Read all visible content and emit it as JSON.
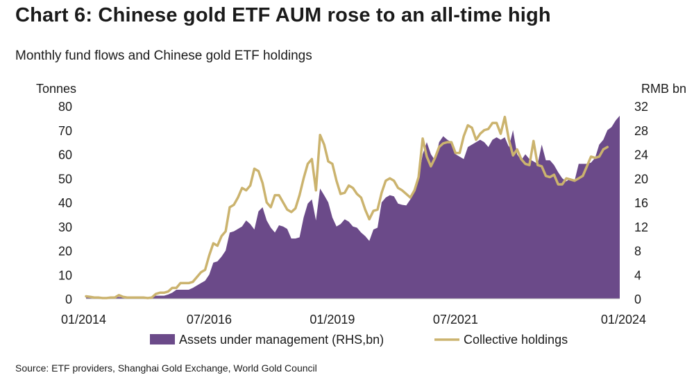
{
  "title": "Chart 6: Chinese gold ETF AUM rose to an all-time high",
  "subtitle": "Monthly fund flows and Chinese gold ETF holdings",
  "source": "Source: ETF providers, Shanghai Gold Exchange, World Gold Council",
  "colors": {
    "aum": "#6b4a89",
    "holdings": "#cbb36e"
  },
  "chart_data": {
    "type": "area+line",
    "title": "Chart 6: Chinese gold ETF AUM rose to an all-time high",
    "left_axis": {
      "label": "Tonnes",
      "min": 0,
      "max": 80,
      "ticks": [
        "0",
        "10",
        "20",
        "30",
        "40",
        "50",
        "60",
        "70",
        "80"
      ]
    },
    "right_axis": {
      "label": "RMB bn",
      "min": 0,
      "max": 32,
      "ticks": [
        "0",
        "4",
        "8",
        "12",
        "16",
        "20",
        "24",
        "28",
        "32"
      ]
    },
    "x_ticks": [
      "01/2014",
      "07/2016",
      "01/2019",
      "07/2021",
      "01/2024"
    ],
    "x_tick_index": [
      0,
      30,
      60,
      90,
      120
    ],
    "legend": {
      "aum": "Assets under management (RHS,bn)",
      "holdings": "Collective holdings"
    },
    "series": [
      {
        "name": "Assets under management (RHS,bn)",
        "type": "area",
        "axis": "right",
        "start": "01/2014",
        "values": [
          0.3,
          0.2,
          0.2,
          0.2,
          0.2,
          0.2,
          0.2,
          0.2,
          0.3,
          0.2,
          0.2,
          0.2,
          0.2,
          0.2,
          0.2,
          0.2,
          0.2,
          0.5,
          0.5,
          0.5,
          0.7,
          1.0,
          1.5,
          1.5,
          1.5,
          1.5,
          1.8,
          2.2,
          2.6,
          3.0,
          4.0,
          6.0,
          6.2,
          7.0,
          8.0,
          11.0,
          11.2,
          11.6,
          12.0,
          13.0,
          12.4,
          11.5,
          14.5,
          15.2,
          13.0,
          11.8,
          11.0,
          12.2,
          12.0,
          11.6,
          10.0,
          10.0,
          10.2,
          13.5,
          15.8,
          16.5,
          13.0,
          18.3,
          17.2,
          16.0,
          13.5,
          12.0,
          12.4,
          13.2,
          12.8,
          12.0,
          11.8,
          11.0,
          10.4,
          9.6,
          11.5,
          11.8,
          16.0,
          16.8,
          17.2,
          17.0,
          15.8,
          15.6,
          15.5,
          16.5,
          18.0,
          20.0,
          24.0,
          26.0,
          24.0,
          23.0,
          26.0,
          27.0,
          26.4,
          26.0,
          24.0,
          23.6,
          23.2,
          25.2,
          25.6,
          26.0,
          26.4,
          26.0,
          25.2,
          26.4,
          26.8,
          26.4,
          26.8,
          25.2,
          28.0,
          24.0,
          23.0,
          24.0,
          23.2,
          22.8,
          22.4,
          25.6,
          23.0,
          23.0,
          22.2,
          21.0,
          20.0,
          19.5,
          20.0,
          19.6,
          22.4,
          22.4,
          22.4,
          22.6,
          23.4,
          25.6,
          26.4,
          28.0,
          28.5,
          29.6,
          30.4
        ]
      },
      {
        "name": "Collective holdings",
        "type": "line",
        "axis": "left",
        "start": "01/2014",
        "values": [
          1,
          0.8,
          0.5,
          0.5,
          0.3,
          0.3,
          0.5,
          0.5,
          1.5,
          0.8,
          0.5,
          0.5,
          0.5,
          0.5,
          0.5,
          0.3,
          0.5,
          2,
          2.5,
          2.5,
          3,
          4.5,
          4.5,
          6.5,
          6.5,
          6.5,
          7,
          9,
          11,
          12,
          18,
          23,
          22,
          26,
          28,
          38,
          39,
          42,
          46,
          45,
          47,
          54,
          53,
          48,
          40,
          38,
          43,
          43,
          40,
          37,
          36,
          37.5,
          43,
          50,
          56,
          58,
          45,
          68,
          64,
          57,
          56,
          49,
          43.5,
          44,
          47,
          46,
          43.5,
          42,
          37,
          33,
          36.5,
          37,
          44,
          49,
          50,
          49,
          46,
          45,
          43.5,
          42,
          45,
          50.5,
          66.5,
          59,
          55,
          58.5,
          63,
          64.5,
          65,
          65,
          60.5,
          60.5,
          67.5,
          72,
          71,
          66,
          68.5,
          70,
          70.5,
          73,
          73,
          68.5,
          75.5,
          66,
          59.5,
          62,
          58,
          56,
          55.5,
          65.5,
          55.5,
          55,
          51,
          50.5,
          51.5,
          47.5,
          47.5,
          50,
          49.5,
          49,
          50,
          51,
          55,
          59,
          58.5,
          59,
          62,
          63
        ]
      }
    ]
  }
}
